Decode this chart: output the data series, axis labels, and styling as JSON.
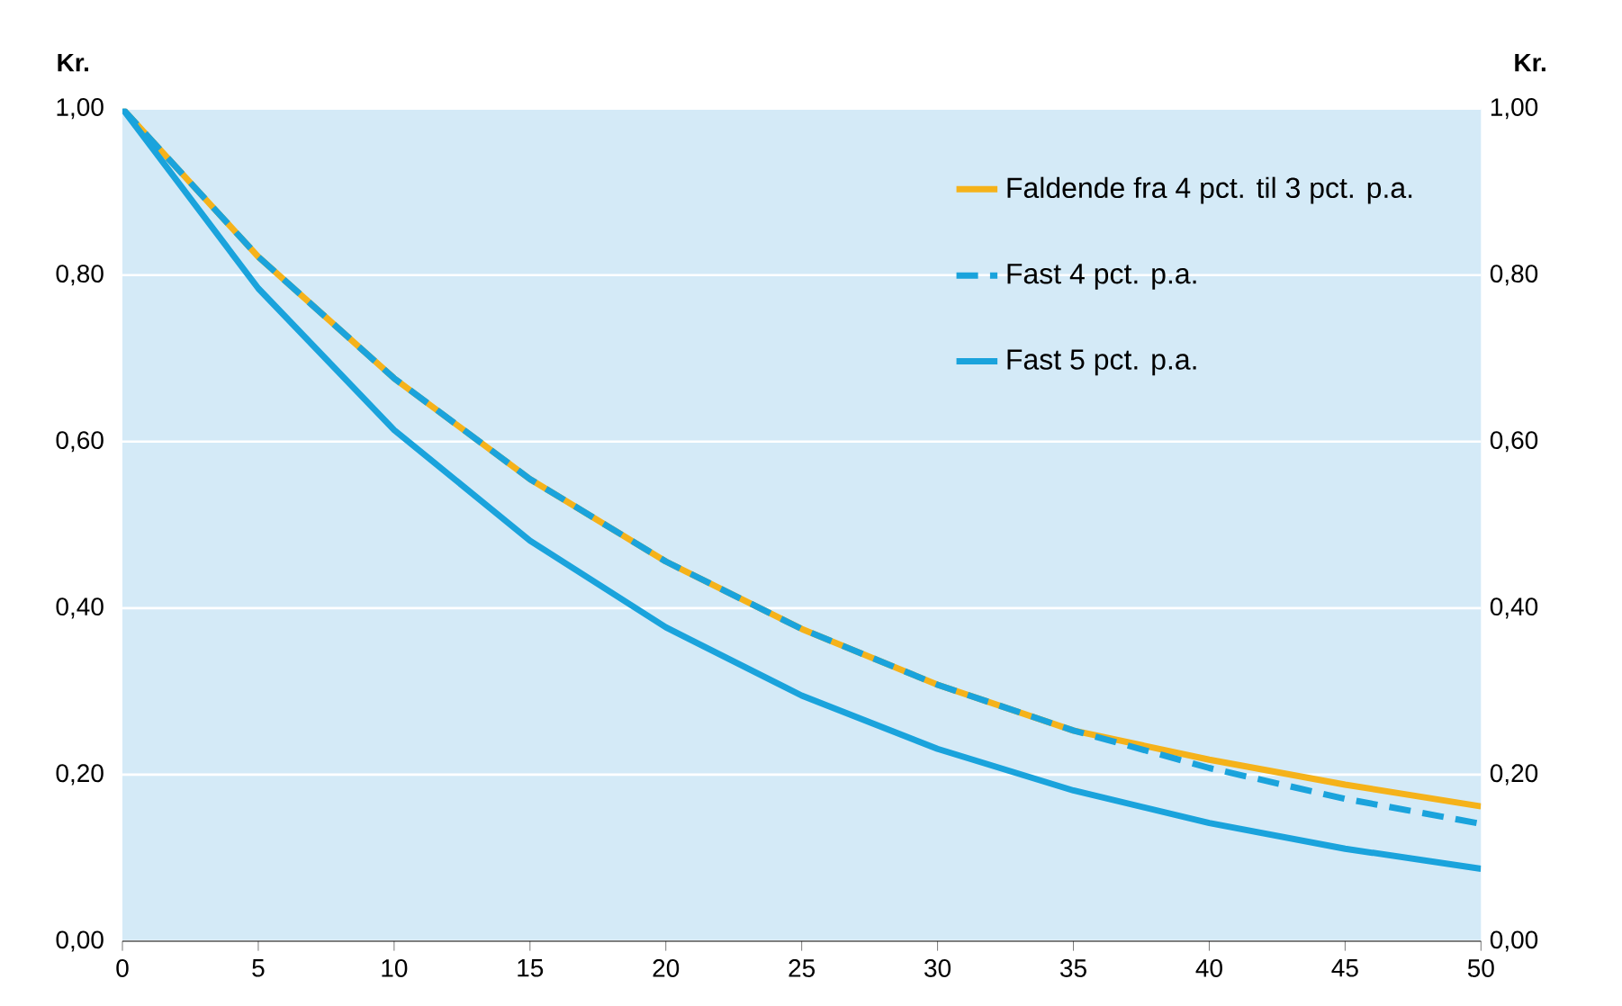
{
  "chart_data": {
    "type": "line",
    "ylabel": "Kr.",
    "y2label": "Kr.",
    "x": [
      0,
      5,
      10,
      15,
      20,
      25,
      30,
      35,
      40,
      45,
      50
    ],
    "series": [
      {
        "name": "Faldende fra 4 pct. til 3 pct. p.a.",
        "color": "#f5b21a",
        "line_style": "solid",
        "values": [
          1.0,
          0.822,
          0.676,
          0.555,
          0.456,
          0.375,
          0.308,
          0.253,
          0.218,
          0.188,
          0.162
        ]
      },
      {
        "name": "Fast 4 pct. p.a.",
        "color": "#1aa3dc",
        "line_style": "dashed",
        "values": [
          1.0,
          0.822,
          0.676,
          0.555,
          0.456,
          0.375,
          0.308,
          0.253,
          0.208,
          0.171,
          0.141
        ]
      },
      {
        "name": "Fast 5 pct. p.a.",
        "color": "#1aa3dc",
        "line_style": "solid",
        "values": [
          1.0,
          0.784,
          0.614,
          0.481,
          0.377,
          0.295,
          0.231,
          0.181,
          0.142,
          0.111,
          0.087
        ]
      }
    ],
    "xlim": [
      0,
      50
    ],
    "xticks": [
      0,
      5,
      10,
      15,
      20,
      25,
      30,
      35,
      40,
      45,
      50
    ],
    "ylim": [
      0,
      1
    ],
    "yticks": [
      {
        "value": 0,
        "label": "0,00"
      },
      {
        "value": 0.2,
        "label": "0,20"
      },
      {
        "value": 0.4,
        "label": "0,40"
      },
      {
        "value": 0.6,
        "label": "0,60"
      },
      {
        "value": 0.8,
        "label": "0,80"
      },
      {
        "value": 1,
        "label": "1,00"
      }
    ],
    "y2lim": [
      0,
      1
    ],
    "y2ticks": [
      {
        "value": 0,
        "label": "0,00"
      },
      {
        "value": 0.2,
        "label": "0,20"
      },
      {
        "value": 0.4,
        "label": "0,40"
      },
      {
        "value": 0.6,
        "label": "0,60"
      },
      {
        "value": 0.8,
        "label": "0,80"
      },
      {
        "value": 1,
        "label": "1,00"
      }
    ],
    "grid": "y",
    "legend": "top right",
    "marker": "none"
  }
}
